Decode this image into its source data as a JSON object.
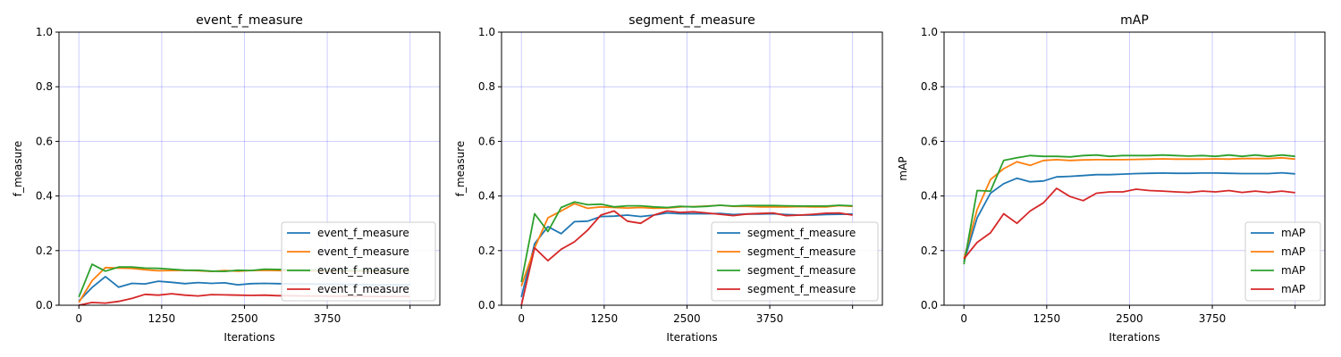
{
  "chart_data": [
    {
      "type": "line",
      "title": "event_f_measure",
      "xlabel": "Iterations",
      "ylabel": "f_measure",
      "xlim": [
        -300,
        5450
      ],
      "ylim": [
        0,
        1.0
      ],
      "xticks": [
        0,
        1250,
        2500,
        3750
      ],
      "xtick_labels": [
        "0",
        "1250",
        "2500",
        "3750"
      ],
      "extra_x_gridlines": [
        5000
      ],
      "yticks": [
        0,
        0.2,
        0.4,
        0.6,
        0.8,
        1.0
      ],
      "ytick_labels": [
        "0.0",
        "0.2",
        "0.4",
        "0.6",
        "0.8",
        "1.0"
      ],
      "grid": true,
      "legend_position": "lower-right",
      "x": [
        0,
        200,
        400,
        600,
        800,
        1000,
        1200,
        1400,
        1600,
        1800,
        2000,
        2200,
        2400,
        2600,
        2800,
        3000,
        3200,
        3400,
        3600,
        3800,
        4000,
        4200,
        4400,
        4600,
        4800,
        5000
      ],
      "series": [
        {
          "name": "event_f_measure",
          "color": "#1f77b4",
          "values": [
            0.015,
            0.065,
            0.105,
            0.066,
            0.08,
            0.078,
            0.088,
            0.084,
            0.079,
            0.083,
            0.08,
            0.082,
            0.075,
            0.079,
            0.08,
            0.079,
            0.078,
            0.078,
            0.077,
            0.077,
            0.076,
            0.076,
            0.075,
            0.075,
            0.075,
            0.075
          ]
        },
        {
          "name": "event_f_measure",
          "color": "#ff7f0e",
          "values": [
            0.01,
            0.09,
            0.138,
            0.136,
            0.135,
            0.13,
            0.126,
            0.127,
            0.128,
            0.126,
            0.124,
            0.127,
            0.125,
            0.127,
            0.128,
            0.127,
            0.126,
            0.126,
            0.125,
            0.125,
            0.125,
            0.124,
            0.124,
            0.124,
            0.124,
            0.124
          ]
        },
        {
          "name": "event_f_measure",
          "color": "#2ca02c",
          "values": [
            0.03,
            0.15,
            0.125,
            0.14,
            0.14,
            0.136,
            0.135,
            0.132,
            0.128,
            0.128,
            0.125,
            0.124,
            0.128,
            0.127,
            0.132,
            0.131,
            0.13,
            0.13,
            0.129,
            0.129,
            0.128,
            0.128,
            0.128,
            0.127,
            0.127,
            0.127
          ]
        },
        {
          "name": "event_f_measure",
          "color": "#d62728",
          "values": [
            0.0,
            0.01,
            0.008,
            0.014,
            0.025,
            0.04,
            0.037,
            0.042,
            0.037,
            0.034,
            0.039,
            0.038,
            0.037,
            0.036,
            0.037,
            0.035,
            0.035,
            0.034,
            0.034,
            0.033,
            0.033,
            0.033,
            0.032,
            0.032,
            0.032,
            0.032
          ]
        }
      ]
    },
    {
      "type": "line",
      "title": "segment_f_measure",
      "xlabel": "Iterations",
      "ylabel": "f_measure",
      "xlim": [
        -300,
        5450
      ],
      "ylim": [
        0,
        1.0
      ],
      "xticks": [
        0,
        1250,
        2500,
        3750
      ],
      "xtick_labels": [
        "0",
        "1250",
        "2500",
        "3750"
      ],
      "extra_x_gridlines": [
        5000
      ],
      "yticks": [
        0,
        0.2,
        0.4,
        0.6,
        0.8,
        1.0
      ],
      "ytick_labels": [
        "0.0",
        "0.2",
        "0.4",
        "0.6",
        "0.8",
        "1.0"
      ],
      "grid": true,
      "legend_position": "lower-right",
      "x": [
        0,
        200,
        400,
        600,
        800,
        1000,
        1200,
        1400,
        1600,
        1800,
        2000,
        2200,
        2400,
        2600,
        2800,
        3000,
        3200,
        3400,
        3600,
        3800,
        4000,
        4200,
        4400,
        4600,
        4800,
        5000
      ],
      "series": [
        {
          "name": "segment_f_measure",
          "color": "#1f77b4",
          "values": [
            0.03,
            0.225,
            0.288,
            0.262,
            0.306,
            0.308,
            0.325,
            0.326,
            0.33,
            0.325,
            0.33,
            0.338,
            0.335,
            0.335,
            0.335,
            0.336,
            0.332,
            0.334,
            0.334,
            0.335,
            0.332,
            0.33,
            0.33,
            0.332,
            0.333,
            0.334
          ]
        },
        {
          "name": "segment_f_measure",
          "color": "#ff7f0e",
          "values": [
            0.07,
            0.21,
            0.32,
            0.345,
            0.372,
            0.355,
            0.36,
            0.358,
            0.356,
            0.358,
            0.355,
            0.356,
            0.36,
            0.361,
            0.363,
            0.366,
            0.362,
            0.362,
            0.36,
            0.36,
            0.36,
            0.361,
            0.36,
            0.36,
            0.365,
            0.362
          ]
        },
        {
          "name": "segment_f_measure",
          "color": "#2ca02c",
          "values": [
            0.085,
            0.335,
            0.27,
            0.358,
            0.378,
            0.368,
            0.37,
            0.36,
            0.364,
            0.364,
            0.36,
            0.358,
            0.362,
            0.36,
            0.362,
            0.366,
            0.363,
            0.365,
            0.365,
            0.365,
            0.364,
            0.363,
            0.363,
            0.363,
            0.366,
            0.364
          ]
        },
        {
          "name": "segment_f_measure",
          "color": "#d62728",
          "values": [
            0.0,
            0.21,
            0.163,
            0.205,
            0.232,
            0.275,
            0.33,
            0.345,
            0.308,
            0.3,
            0.33,
            0.345,
            0.34,
            0.342,
            0.338,
            0.333,
            0.328,
            0.334,
            0.336,
            0.338,
            0.328,
            0.33,
            0.333,
            0.337,
            0.338,
            0.33
          ]
        }
      ]
    },
    {
      "type": "line",
      "title": "mAP",
      "xlabel": "Iterations",
      "ylabel": "mAP",
      "xlim": [
        -300,
        5450
      ],
      "ylim": [
        0,
        1.0
      ],
      "xticks": [
        0,
        1250,
        2500,
        3750
      ],
      "xtick_labels": [
        "0",
        "1250",
        "2500",
        "3750"
      ],
      "extra_x_gridlines": [
        5000
      ],
      "yticks": [
        0,
        0.2,
        0.4,
        0.6,
        0.8,
        1.0
      ],
      "ytick_labels": [
        "0.0",
        "0.2",
        "0.4",
        "0.6",
        "0.8",
        "1.0"
      ],
      "grid": true,
      "legend_position": "lower-right",
      "x": [
        0,
        200,
        400,
        600,
        800,
        1000,
        1200,
        1400,
        1600,
        1800,
        2000,
        2200,
        2400,
        2600,
        2800,
        3000,
        3200,
        3400,
        3600,
        3800,
        4000,
        4200,
        4400,
        4600,
        4800,
        5000
      ],
      "series": [
        {
          "name": "mAP",
          "color": "#1f77b4",
          "values": [
            0.16,
            0.32,
            0.41,
            0.445,
            0.465,
            0.452,
            0.455,
            0.47,
            0.472,
            0.475,
            0.478,
            0.478,
            0.48,
            0.482,
            0.483,
            0.484,
            0.483,
            0.483,
            0.484,
            0.484,
            0.483,
            0.482,
            0.482,
            0.482,
            0.485,
            0.481
          ]
        },
        {
          "name": "mAP",
          "color": "#ff7f0e",
          "values": [
            0.17,
            0.35,
            0.46,
            0.5,
            0.525,
            0.512,
            0.53,
            0.533,
            0.53,
            0.532,
            0.533,
            0.533,
            0.533,
            0.534,
            0.535,
            0.536,
            0.535,
            0.535,
            0.535,
            0.536,
            0.535,
            0.537,
            0.537,
            0.537,
            0.54,
            0.535
          ]
        },
        {
          "name": "mAP",
          "color": "#2ca02c",
          "values": [
            0.15,
            0.42,
            0.418,
            0.53,
            0.54,
            0.548,
            0.545,
            0.545,
            0.543,
            0.548,
            0.55,
            0.545,
            0.548,
            0.548,
            0.548,
            0.55,
            0.548,
            0.546,
            0.548,
            0.545,
            0.55,
            0.545,
            0.55,
            0.545,
            0.55,
            0.545
          ]
        },
        {
          "name": "mAP",
          "color": "#d62728",
          "values": [
            0.17,
            0.23,
            0.265,
            0.335,
            0.3,
            0.345,
            0.375,
            0.428,
            0.398,
            0.383,
            0.41,
            0.415,
            0.415,
            0.425,
            0.42,
            0.418,
            0.415,
            0.413,
            0.418,
            0.415,
            0.42,
            0.413,
            0.418,
            0.413,
            0.418,
            0.412
          ]
        }
      ]
    }
  ]
}
